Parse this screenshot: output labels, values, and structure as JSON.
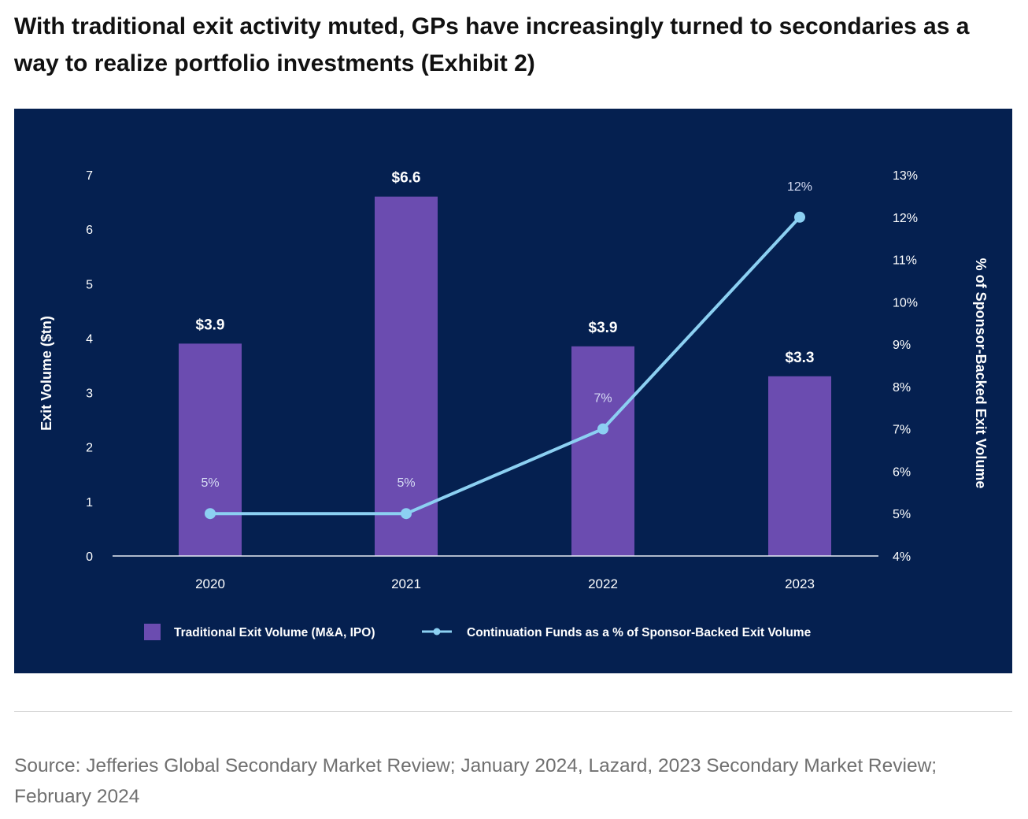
{
  "page": {
    "headline": "With traditional exit activity muted, GPs have increasingly turned to secondaries as a way to realize portfolio investments (Exhibit 2)",
    "source": "Source: Jefferies Global Secondary Market Review; January 2024, Lazard, 2023 Secondary Market Review; February 2024"
  },
  "colors": {
    "panel_bg": "#052050",
    "bar": "#6B4CB0",
    "line": "#8CD0F2",
    "text": "#FFFFFF",
    "axis": "#E8ECF4"
  },
  "chart_data": {
    "type": "bar",
    "categories": [
      "2020",
      "2021",
      "2022",
      "2023"
    ],
    "ylabel": "Exit Volume ($tn)",
    "y2label": "% of Sponsor-Backed Exit Volume",
    "ylim": [
      0,
      7
    ],
    "y_ticks": [
      "0",
      "1",
      "2",
      "3",
      "4",
      "5",
      "6",
      "7"
    ],
    "y2lim": [
      4,
      13
    ],
    "y2_ticks": [
      "4%",
      "5%",
      "6%",
      "7%",
      "8%",
      "9%",
      "10%",
      "11%",
      "12%",
      "13%"
    ],
    "grid": false,
    "legend_position": "bottom",
    "series": [
      {
        "name": "Traditional Exit Volume (M&A, IPO)",
        "kind": "bar",
        "axis": "left",
        "values": [
          3.9,
          6.6,
          3.85,
          3.3
        ],
        "labels": [
          "$3.9",
          "$6.6",
          "$3.9",
          "$3.3"
        ]
      },
      {
        "name": "Continuation Funds as a % of Sponsor-Backed Exit Volume",
        "kind": "line",
        "axis": "right",
        "values": [
          5,
          5,
          7,
          12
        ],
        "labels": [
          "5%",
          "5%",
          "7%",
          "12%"
        ]
      }
    ]
  }
}
